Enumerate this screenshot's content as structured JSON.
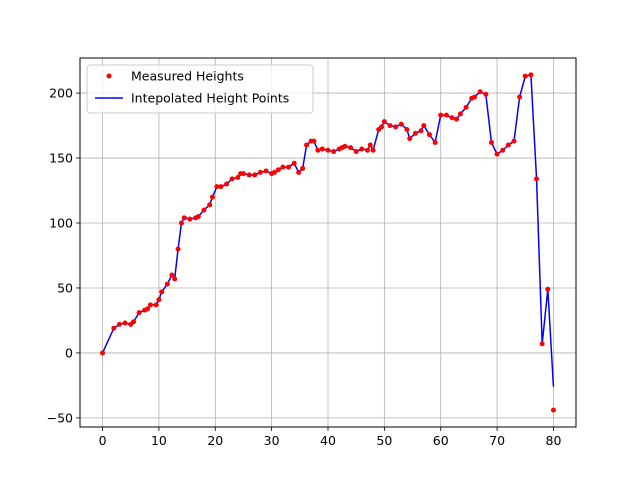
{
  "chart_data": {
    "type": "line",
    "title": "",
    "xlabel": "",
    "ylabel": "",
    "xlim": [
      -4,
      84
    ],
    "ylim": [
      -57,
      227
    ],
    "grid": true,
    "legend_placement": "top-left",
    "x_ticks": [
      0,
      10,
      20,
      30,
      40,
      50,
      60,
      70,
      80
    ],
    "y_ticks": [
      -50,
      0,
      50,
      100,
      150,
      200
    ],
    "colors": {
      "measured": "#ff0000",
      "interpolated": "#0000ff"
    },
    "series": [
      {
        "name": "Measured Heights",
        "style": "markers",
        "points": [
          [
            0,
            0
          ],
          [
            2,
            19
          ],
          [
            3,
            22
          ],
          [
            4,
            23
          ],
          [
            5,
            22
          ],
          [
            5.5,
            24
          ],
          [
            6.5,
            31
          ],
          [
            7.5,
            33
          ],
          [
            8,
            34
          ],
          [
            8.5,
            37
          ],
          [
            9.5,
            37
          ],
          [
            10,
            41
          ],
          [
            10.5,
            47
          ],
          [
            11.5,
            53
          ],
          [
            12.3,
            60
          ],
          [
            12.8,
            57
          ],
          [
            13.4,
            80
          ],
          [
            14,
            100
          ],
          [
            14.5,
            104
          ],
          [
            15.5,
            103
          ],
          [
            16.5,
            104
          ],
          [
            17,
            105
          ],
          [
            18,
            110
          ],
          [
            19,
            114
          ],
          [
            19.5,
            120
          ],
          [
            20.3,
            128
          ],
          [
            21,
            128
          ],
          [
            22,
            130
          ],
          [
            23,
            134
          ],
          [
            24,
            135
          ],
          [
            24.5,
            138
          ],
          [
            25,
            138
          ],
          [
            26,
            137
          ],
          [
            27,
            137
          ],
          [
            28,
            139
          ],
          [
            29,
            140
          ],
          [
            30,
            138
          ],
          [
            30.5,
            139
          ],
          [
            31.2,
            141
          ],
          [
            32,
            143
          ],
          [
            33,
            143
          ],
          [
            34,
            146
          ],
          [
            34.8,
            139
          ],
          [
            35.5,
            142
          ],
          [
            36.2,
            160
          ],
          [
            37,
            163
          ],
          [
            37.5,
            163
          ],
          [
            38.2,
            156
          ],
          [
            39,
            157
          ],
          [
            40,
            156
          ],
          [
            41,
            155
          ],
          [
            42,
            157
          ],
          [
            42.5,
            158
          ],
          [
            43,
            159
          ],
          [
            44,
            158
          ],
          [
            45,
            155
          ],
          [
            46,
            157
          ],
          [
            47,
            156
          ],
          [
            47.5,
            160
          ],
          [
            48,
            156
          ],
          [
            49,
            172
          ],
          [
            49.5,
            174
          ],
          [
            50,
            178
          ],
          [
            51,
            175
          ],
          [
            52,
            174
          ],
          [
            53,
            176
          ],
          [
            54,
            172
          ],
          [
            54.5,
            165
          ],
          [
            55.5,
            169
          ],
          [
            56.5,
            171
          ],
          [
            57,
            175
          ],
          [
            58,
            168
          ],
          [
            59,
            162
          ],
          [
            60,
            183
          ],
          [
            61,
            183
          ],
          [
            62,
            181
          ],
          [
            62.8,
            180
          ],
          [
            63.5,
            184
          ],
          [
            64.5,
            189
          ],
          [
            65.5,
            196
          ],
          [
            66,
            197
          ],
          [
            67,
            201
          ],
          [
            68,
            199
          ],
          [
            69,
            162
          ],
          [
            70,
            153
          ],
          [
            71,
            156
          ],
          [
            72,
            160
          ],
          [
            73,
            163
          ],
          [
            74,
            197
          ],
          [
            75,
            213
          ],
          [
            76,
            214
          ],
          [
            77,
            134
          ],
          [
            78,
            7
          ],
          [
            79,
            49
          ],
          [
            80,
            -44
          ]
        ]
      },
      {
        "name": "Intepolated Height Points",
        "style": "line",
        "points": [
          [
            0,
            0
          ],
          [
            2,
            19
          ],
          [
            3,
            22
          ],
          [
            4,
            23
          ],
          [
            5,
            22
          ],
          [
            5.5,
            24
          ],
          [
            6.5,
            31
          ],
          [
            7.5,
            33
          ],
          [
            8,
            34
          ],
          [
            8.5,
            37
          ],
          [
            9.5,
            37
          ],
          [
            10,
            41
          ],
          [
            10.5,
            47
          ],
          [
            11.5,
            53
          ],
          [
            12.3,
            60
          ],
          [
            12.8,
            57
          ],
          [
            13.4,
            80
          ],
          [
            14,
            100
          ],
          [
            14.5,
            104
          ],
          [
            15.5,
            103
          ],
          [
            16.5,
            104
          ],
          [
            17,
            105
          ],
          [
            18,
            110
          ],
          [
            19,
            114
          ],
          [
            19.5,
            120
          ],
          [
            20.3,
            128
          ],
          [
            21,
            128
          ],
          [
            22,
            130
          ],
          [
            23,
            134
          ],
          [
            24,
            135
          ],
          [
            24.5,
            138
          ],
          [
            25,
            138
          ],
          [
            26,
            137
          ],
          [
            27,
            137
          ],
          [
            28,
            139
          ],
          [
            29,
            140
          ],
          [
            30,
            138
          ],
          [
            30.5,
            139
          ],
          [
            31.2,
            141
          ],
          [
            32,
            143
          ],
          [
            33,
            143
          ],
          [
            34,
            146
          ],
          [
            34.8,
            139
          ],
          [
            35.5,
            142
          ],
          [
            36.2,
            160
          ],
          [
            37,
            163
          ],
          [
            37.5,
            163
          ],
          [
            38.2,
            156
          ],
          [
            39,
            157
          ],
          [
            40,
            156
          ],
          [
            41,
            155
          ],
          [
            42,
            157
          ],
          [
            42.5,
            158
          ],
          [
            43,
            159
          ],
          [
            44,
            158
          ],
          [
            45,
            155
          ],
          [
            46,
            157
          ],
          [
            47,
            156
          ],
          [
            47.5,
            160
          ],
          [
            48,
            156
          ],
          [
            49,
            172
          ],
          [
            49.5,
            174
          ],
          [
            50,
            178
          ],
          [
            51,
            175
          ],
          [
            52,
            174
          ],
          [
            53,
            176
          ],
          [
            54,
            172
          ],
          [
            54.5,
            165
          ],
          [
            55.5,
            169
          ],
          [
            56.5,
            171
          ],
          [
            57,
            175
          ],
          [
            58,
            168
          ],
          [
            59,
            162
          ],
          [
            60,
            183
          ],
          [
            61,
            183
          ],
          [
            62,
            181
          ],
          [
            62.8,
            180
          ],
          [
            63.5,
            184
          ],
          [
            64.5,
            189
          ],
          [
            65.5,
            196
          ],
          [
            66,
            197
          ],
          [
            67,
            201
          ],
          [
            68,
            199
          ],
          [
            69,
            162
          ],
          [
            70,
            153
          ],
          [
            71,
            156
          ],
          [
            72,
            160
          ],
          [
            73,
            163
          ],
          [
            74,
            197
          ],
          [
            75,
            213
          ],
          [
            76,
            214
          ],
          [
            77,
            134
          ],
          [
            78,
            7
          ],
          [
            79,
            49
          ],
          [
            80,
            -26
          ]
        ]
      }
    ]
  }
}
